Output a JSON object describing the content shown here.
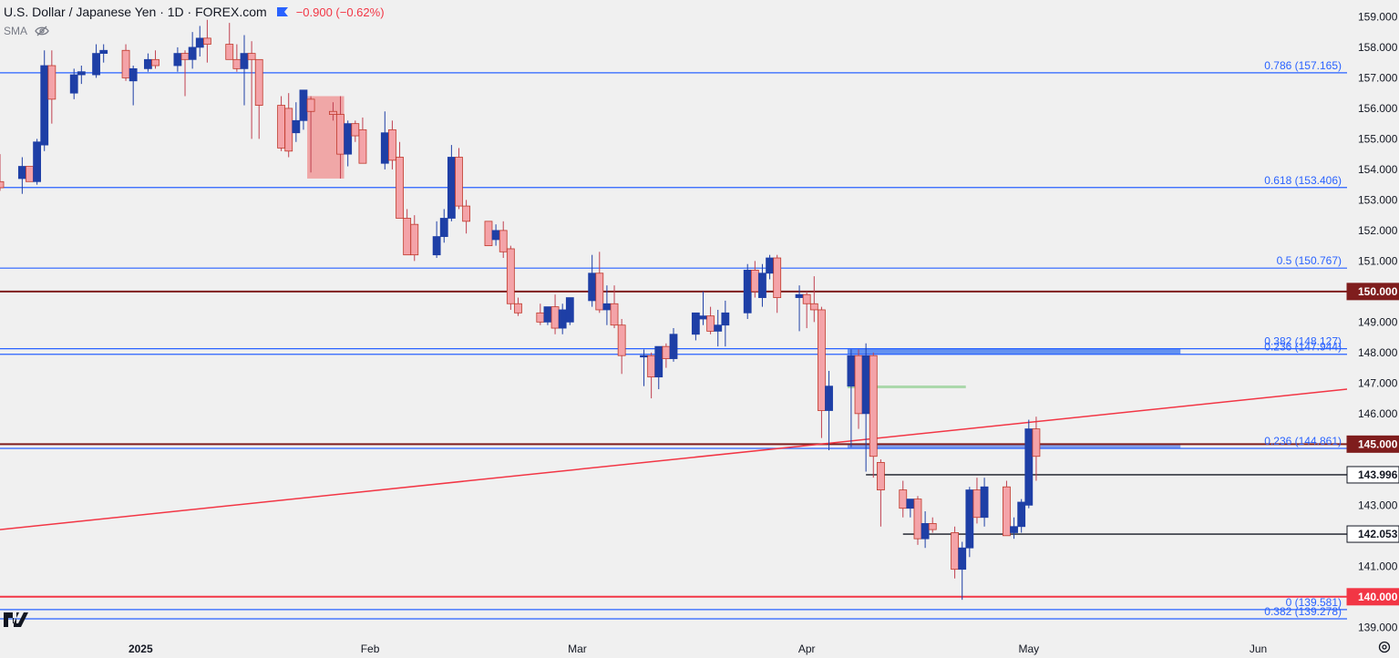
{
  "header": {
    "title": "U.S. Dollar / Japanese Yen · 1D · FOREX.com",
    "change": "−0.900 (−0.62%)",
    "indicator": "SMA"
  },
  "colors": {
    "background": "#f0f0f0",
    "up_fill": "#1e3fa6",
    "down_fill": "#f4a3a8",
    "fib_line": "#2962ff",
    "fib_text": "#2962ff",
    "level_dark_red": "#7f1d1d",
    "level_red": "#f23645",
    "level_black": "#131722",
    "trendline": "#f23645"
  },
  "chart_data": {
    "type": "candlestick",
    "title": "U.S. Dollar / Japanese Yen · 1D · FOREX.com",
    "ylim": [
      138.8,
      159.55
    ],
    "y_ticks": [
      "159.000",
      "158.000",
      "157.000",
      "156.000",
      "155.000",
      "154.000",
      "153.000",
      "152.000",
      "151.000",
      "150.000",
      "149.000",
      "148.000",
      "147.000",
      "146.000",
      "145.000",
      "144.000",
      "143.000",
      "142.000",
      "141.000",
      "140.000",
      "139.000"
    ],
    "x_ticks": [
      {
        "label": "2025",
        "date": "2025-01-01"
      },
      {
        "label": "Feb",
        "date": "2025-02-01"
      },
      {
        "label": "Mar",
        "date": "2025-03-01"
      },
      {
        "label": "Apr",
        "date": "2025-04-01"
      },
      {
        "label": "May",
        "date": "2025-05-01"
      },
      {
        "label": "Jun",
        "date": "2025-06-01"
      }
    ],
    "xlim": [
      "2024-12-13",
      "2025-06-13"
    ],
    "candles": [
      {
        "d": "2024-12-13",
        "o": 153.6,
        "h": 154.5,
        "l": 153.3,
        "c": 153.4
      },
      {
        "d": "2024-12-16",
        "o": 153.7,
        "h": 154.4,
        "l": 153.2,
        "c": 154.1
      },
      {
        "d": "2024-12-17",
        "o": 154.1,
        "h": 154.1,
        "l": 153.7,
        "c": 153.6
      },
      {
        "d": "2024-12-18",
        "o": 153.6,
        "h": 155.0,
        "l": 153.5,
        "c": 154.9
      },
      {
        "d": "2024-12-19",
        "o": 154.8,
        "h": 157.9,
        "l": 154.6,
        "c": 157.4
      },
      {
        "d": "2024-12-20",
        "o": 157.4,
        "h": 157.9,
        "l": 155.5,
        "c": 156.3
      },
      {
        "d": "2024-12-23",
        "o": 156.5,
        "h": 157.3,
        "l": 156.3,
        "c": 157.1
      },
      {
        "d": "2024-12-24",
        "o": 157.1,
        "h": 157.4,
        "l": 156.8,
        "c": 157.2
      },
      {
        "d": "2024-12-26",
        "o": 157.1,
        "h": 158.1,
        "l": 157.0,
        "c": 157.8
      },
      {
        "d": "2024-12-27",
        "o": 157.8,
        "h": 158.1,
        "l": 157.5,
        "c": 157.9
      },
      {
        "d": "2024-12-30",
        "o": 157.9,
        "h": 158.1,
        "l": 156.9,
        "c": 157.0
      },
      {
        "d": "2024-12-31",
        "o": 156.9,
        "h": 157.4,
        "l": 156.1,
        "c": 157.3
      },
      {
        "d": "2025-01-02",
        "o": 157.3,
        "h": 157.8,
        "l": 157.2,
        "c": 157.6
      },
      {
        "d": "2025-01-03",
        "o": 157.6,
        "h": 157.9,
        "l": 157.3,
        "c": 157.4
      },
      {
        "d": "2025-01-06",
        "o": 157.4,
        "h": 158.0,
        "l": 157.2,
        "c": 157.8
      },
      {
        "d": "2025-01-07",
        "o": 157.8,
        "h": 157.9,
        "l": 156.4,
        "c": 157.6
      },
      {
        "d": "2025-01-08",
        "o": 157.6,
        "h": 158.5,
        "l": 157.3,
        "c": 158.0
      },
      {
        "d": "2025-01-09",
        "o": 158.0,
        "h": 158.7,
        "l": 157.7,
        "c": 158.3
      },
      {
        "d": "2025-01-10",
        "o": 158.3,
        "h": 158.9,
        "l": 157.5,
        "c": 158.1
      },
      {
        "d": "2025-01-13",
        "o": 158.1,
        "h": 158.8,
        "l": 157.8,
        "c": 157.6
      },
      {
        "d": "2025-01-14",
        "o": 157.6,
        "h": 158.1,
        "l": 157.2,
        "c": 157.3
      },
      {
        "d": "2025-01-15",
        "o": 157.3,
        "h": 158.4,
        "l": 156.1,
        "c": 157.8
      },
      {
        "d": "2025-01-16",
        "o": 157.8,
        "h": 158.2,
        "l": 155.0,
        "c": 157.6
      },
      {
        "d": "2025-01-17",
        "o": 157.6,
        "h": 157.5,
        "l": 155.0,
        "c": 156.1
      },
      {
        "d": "2025-01-20",
        "o": 156.1,
        "h": 156.4,
        "l": 154.6,
        "c": 154.7
      },
      {
        "d": "2025-01-21",
        "o": 156.0,
        "h": 156.5,
        "l": 154.4,
        "c": 154.6
      },
      {
        "d": "2025-01-22",
        "o": 155.2,
        "h": 156.2,
        "l": 154.9,
        "c": 155.6
      },
      {
        "d": "2025-01-23",
        "o": 155.6,
        "h": 156.6,
        "l": 155.3,
        "c": 156.6
      },
      {
        "d": "2025-01-24",
        "o": 156.3,
        "h": 156.4,
        "l": 153.9,
        "c": 155.9
      },
      {
        "d": "2025-01-27",
        "o": 155.9,
        "h": 156.2,
        "l": 155.6,
        "c": 155.8
      },
      {
        "d": "2025-01-28",
        "o": 155.8,
        "h": 156.4,
        "l": 153.7,
        "c": 154.5
      },
      {
        "d": "2025-01-29",
        "o": 154.5,
        "h": 155.6,
        "l": 154.1,
        "c": 155.5
      },
      {
        "d": "2025-01-30",
        "o": 155.5,
        "h": 155.6,
        "l": 154.9,
        "c": 155.1
      },
      {
        "d": "2025-01-31",
        "o": 155.3,
        "h": 155.7,
        "l": 154.4,
        "c": 154.2
      },
      {
        "d": "2025-02-03",
        "o": 154.2,
        "h": 155.9,
        "l": 154.0,
        "c": 155.2
      },
      {
        "d": "2025-02-04",
        "o": 155.3,
        "h": 155.6,
        "l": 154.0,
        "c": 154.3
      },
      {
        "d": "2025-02-05",
        "o": 154.4,
        "h": 154.9,
        "l": 152.6,
        "c": 152.4
      },
      {
        "d": "2025-02-06",
        "o": 152.4,
        "h": 152.7,
        "l": 151.3,
        "c": 151.2
      },
      {
        "d": "2025-02-07",
        "o": 152.2,
        "h": 152.5,
        "l": 151.0,
        "c": 151.2
      },
      {
        "d": "2025-02-10",
        "o": 151.2,
        "h": 152.3,
        "l": 151.1,
        "c": 151.8
      },
      {
        "d": "2025-02-11",
        "o": 151.8,
        "h": 152.7,
        "l": 151.6,
        "c": 152.4
      },
      {
        "d": "2025-02-12",
        "o": 152.4,
        "h": 154.8,
        "l": 152.3,
        "c": 154.4
      },
      {
        "d": "2025-02-13",
        "o": 154.4,
        "h": 154.7,
        "l": 152.7,
        "c": 152.8
      },
      {
        "d": "2025-02-14",
        "o": 152.8,
        "h": 153.0,
        "l": 151.9,
        "c": 152.3
      },
      {
        "d": "2025-02-17",
        "o": 152.3,
        "h": 152.1,
        "l": 151.7,
        "c": 151.5
      },
      {
        "d": "2025-02-18",
        "o": 151.7,
        "h": 152.2,
        "l": 151.5,
        "c": 152.0
      },
      {
        "d": "2025-02-19",
        "o": 152.0,
        "h": 152.3,
        "l": 151.1,
        "c": 151.3
      },
      {
        "d": "2025-02-20",
        "o": 151.4,
        "h": 151.5,
        "l": 149.4,
        "c": 149.6
      },
      {
        "d": "2025-02-21",
        "o": 149.6,
        "h": 149.8,
        "l": 149.2,
        "c": 149.3
      },
      {
        "d": "2025-02-24",
        "o": 149.3,
        "h": 149.6,
        "l": 148.9,
        "c": 149.0
      },
      {
        "d": "2025-02-25",
        "o": 149.0,
        "h": 149.4,
        "l": 148.9,
        "c": 149.5
      },
      {
        "d": "2025-02-26",
        "o": 149.5,
        "h": 149.9,
        "l": 148.6,
        "c": 148.8
      },
      {
        "d": "2025-02-27",
        "o": 148.8,
        "h": 149.6,
        "l": 148.6,
        "c": 149.4
      },
      {
        "d": "2025-02-28",
        "o": 149.0,
        "h": 149.8,
        "l": 148.9,
        "c": 149.8
      },
      {
        "d": "2025-03-03",
        "o": 149.7,
        "h": 151.2,
        "l": 149.5,
        "c": 150.6
      },
      {
        "d": "2025-03-04",
        "o": 150.6,
        "h": 151.3,
        "l": 149.3,
        "c": 149.4
      },
      {
        "d": "2025-03-05",
        "o": 149.4,
        "h": 150.2,
        "l": 148.9,
        "c": 149.6
      },
      {
        "d": "2025-03-06",
        "o": 149.6,
        "h": 150.2,
        "l": 148.8,
        "c": 148.9
      },
      {
        "d": "2025-03-07",
        "o": 148.9,
        "h": 149.1,
        "l": 147.3,
        "c": 147.9
      },
      {
        "d": "2025-03-10",
        "o": 147.9,
        "h": 148.1,
        "l": 146.9,
        "c": 147.9
      },
      {
        "d": "2025-03-11",
        "o": 147.9,
        "h": 148.0,
        "l": 146.5,
        "c": 147.2
      },
      {
        "d": "2025-03-12",
        "o": 147.2,
        "h": 148.0,
        "l": 146.8,
        "c": 148.2
      },
      {
        "d": "2025-03-13",
        "o": 148.2,
        "h": 148.3,
        "l": 147.5,
        "c": 147.8
      },
      {
        "d": "2025-03-14",
        "o": 147.8,
        "h": 148.8,
        "l": 147.7,
        "c": 148.6
      },
      {
        "d": "2025-03-17",
        "o": 148.6,
        "h": 149.3,
        "l": 148.4,
        "c": 149.3
      },
      {
        "d": "2025-03-18",
        "o": 149.1,
        "h": 150.0,
        "l": 148.9,
        "c": 149.2
      },
      {
        "d": "2025-03-19",
        "o": 149.2,
        "h": 149.5,
        "l": 148.6,
        "c": 148.7
      },
      {
        "d": "2025-03-20",
        "o": 148.7,
        "h": 149.4,
        "l": 148.2,
        "c": 148.9
      },
      {
        "d": "2025-03-21",
        "o": 148.9,
        "h": 149.7,
        "l": 148.2,
        "c": 149.3
      },
      {
        "d": "2025-03-24",
        "o": 149.3,
        "h": 150.9,
        "l": 149.1,
        "c": 150.7
      },
      {
        "d": "2025-03-25",
        "o": 150.7,
        "h": 151.0,
        "l": 149.8,
        "c": 150.0
      },
      {
        "d": "2025-03-26",
        "o": 149.8,
        "h": 150.9,
        "l": 149.5,
        "c": 150.6
      },
      {
        "d": "2025-03-27",
        "o": 150.6,
        "h": 151.2,
        "l": 150.4,
        "c": 151.1
      },
      {
        "d": "2025-03-28",
        "o": 151.1,
        "h": 151.2,
        "l": 149.3,
        "c": 149.8
      },
      {
        "d": "2025-03-31",
        "o": 149.8,
        "h": 150.2,
        "l": 148.7,
        "c": 149.9
      },
      {
        "d": "2025-04-01",
        "o": 149.9,
        "h": 150.0,
        "l": 148.8,
        "c": 149.6
      },
      {
        "d": "2025-04-02",
        "o": 149.6,
        "h": 150.5,
        "l": 149.0,
        "c": 149.4
      },
      {
        "d": "2025-04-03",
        "o": 149.4,
        "h": 149.5,
        "l": 145.2,
        "c": 146.1
      },
      {
        "d": "2025-04-04",
        "o": 146.1,
        "h": 147.4,
        "l": 144.8,
        "c": 146.9
      },
      {
        "d": "2025-04-07",
        "o": 146.9,
        "h": 148.1,
        "l": 144.9,
        "c": 147.9
      },
      {
        "d": "2025-04-08",
        "o": 147.9,
        "h": 148.1,
        "l": 145.5,
        "c": 146.0
      },
      {
        "d": "2025-04-09",
        "o": 146.0,
        "h": 148.3,
        "l": 144.1,
        "c": 147.9
      },
      {
        "d": "2025-04-10",
        "o": 147.9,
        "h": 148.0,
        "l": 143.9,
        "c": 144.6
      },
      {
        "d": "2025-04-11",
        "o": 144.4,
        "h": 144.5,
        "l": 142.3,
        "c": 143.5
      },
      {
        "d": "2025-04-14",
        "o": 143.5,
        "h": 143.8,
        "l": 142.6,
        "c": 142.9
      },
      {
        "d": "2025-04-15",
        "o": 142.9,
        "h": 143.1,
        "l": 142.6,
        "c": 143.2
      },
      {
        "d": "2025-04-16",
        "o": 143.2,
        "h": 143.3,
        "l": 141.7,
        "c": 141.9
      },
      {
        "d": "2025-04-17",
        "o": 141.9,
        "h": 142.8,
        "l": 141.6,
        "c": 142.4
      },
      {
        "d": "2025-04-18",
        "o": 142.4,
        "h": 142.6,
        "l": 142.1,
        "c": 142.2
      },
      {
        "d": "2025-04-21",
        "o": 142.1,
        "h": 142.3,
        "l": 140.6,
        "c": 140.9
      },
      {
        "d": "2025-04-22",
        "o": 140.9,
        "h": 141.8,
        "l": 139.9,
        "c": 141.6
      },
      {
        "d": "2025-04-23",
        "o": 141.6,
        "h": 143.6,
        "l": 141.3,
        "c": 143.5
      },
      {
        "d": "2025-04-24",
        "o": 143.5,
        "h": 143.9,
        "l": 142.4,
        "c": 142.6
      },
      {
        "d": "2025-04-25",
        "o": 142.6,
        "h": 143.9,
        "l": 142.3,
        "c": 143.6
      },
      {
        "d": "2025-04-28",
        "o": 143.6,
        "h": 143.8,
        "l": 142.0,
        "c": 142.0
      },
      {
        "d": "2025-04-29",
        "o": 142.1,
        "h": 142.6,
        "l": 141.9,
        "c": 142.3
      },
      {
        "d": "2025-04-30",
        "o": 142.3,
        "h": 143.2,
        "l": 142.1,
        "c": 143.1
      },
      {
        "d": "2025-05-01",
        "o": 143.0,
        "h": 145.8,
        "l": 142.9,
        "c": 145.5
      },
      {
        "d": "2025-05-02",
        "o": 145.5,
        "h": 145.9,
        "l": 143.8,
        "c": 144.6
      }
    ],
    "fib_levels": [
      {
        "label": "0.786 (157.165)",
        "value": 157.165
      },
      {
        "label": "0.618 (153.406)",
        "value": 153.406
      },
      {
        "label": "0.5 (150.767)",
        "value": 150.767
      },
      {
        "label": "0.382 (148.127)",
        "value": 148.127
      },
      {
        "label": "0.236 (147.944)",
        "value": 147.944
      },
      {
        "label": "0.236 (144.861)",
        "value": 144.861
      },
      {
        "label": "0 (139.581)",
        "value": 139.581
      },
      {
        "label": "0.382 (139.278)",
        "value": 139.278
      }
    ],
    "price_levels": [
      {
        "label": "150.000",
        "value": 150.0,
        "style": "dark-red"
      },
      {
        "label": "145.000",
        "value": 145.0,
        "style": "dark-red"
      },
      {
        "label": "143.996",
        "value": 143.996,
        "style": "black",
        "from": "2025-04-09"
      },
      {
        "label": "142.053",
        "value": 142.053,
        "style": "black",
        "from": "2025-04-14"
      },
      {
        "label": "140.000",
        "value": 140.0,
        "style": "red"
      }
    ],
    "trendline": {
      "start": {
        "d": "2024-12-13",
        "v": 142.2
      },
      "end": {
        "d": "2025-06-13",
        "v": 146.8
      }
    },
    "zones": [
      {
        "name": "red-box",
        "from": "2025-01-24",
        "to": "2025-01-28",
        "lo": 153.7,
        "hi": 156.4,
        "color": "#f08080"
      },
      {
        "name": "blue-zone",
        "from": "2025-04-07",
        "to": "2025-05-21",
        "lo": 147.944,
        "hi": 148.127,
        "color": "#4a80f0"
      },
      {
        "name": "blue-zone-145",
        "from": "2025-04-07",
        "to": "2025-05-21",
        "lo": 144.861,
        "hi": 145.0,
        "color": "#6f8fe8"
      },
      {
        "name": "green-line",
        "from": "2025-04-07",
        "to": "2025-04-22",
        "lo": 146.88,
        "hi": 146.92,
        "color": "#9fd39f"
      }
    ]
  }
}
